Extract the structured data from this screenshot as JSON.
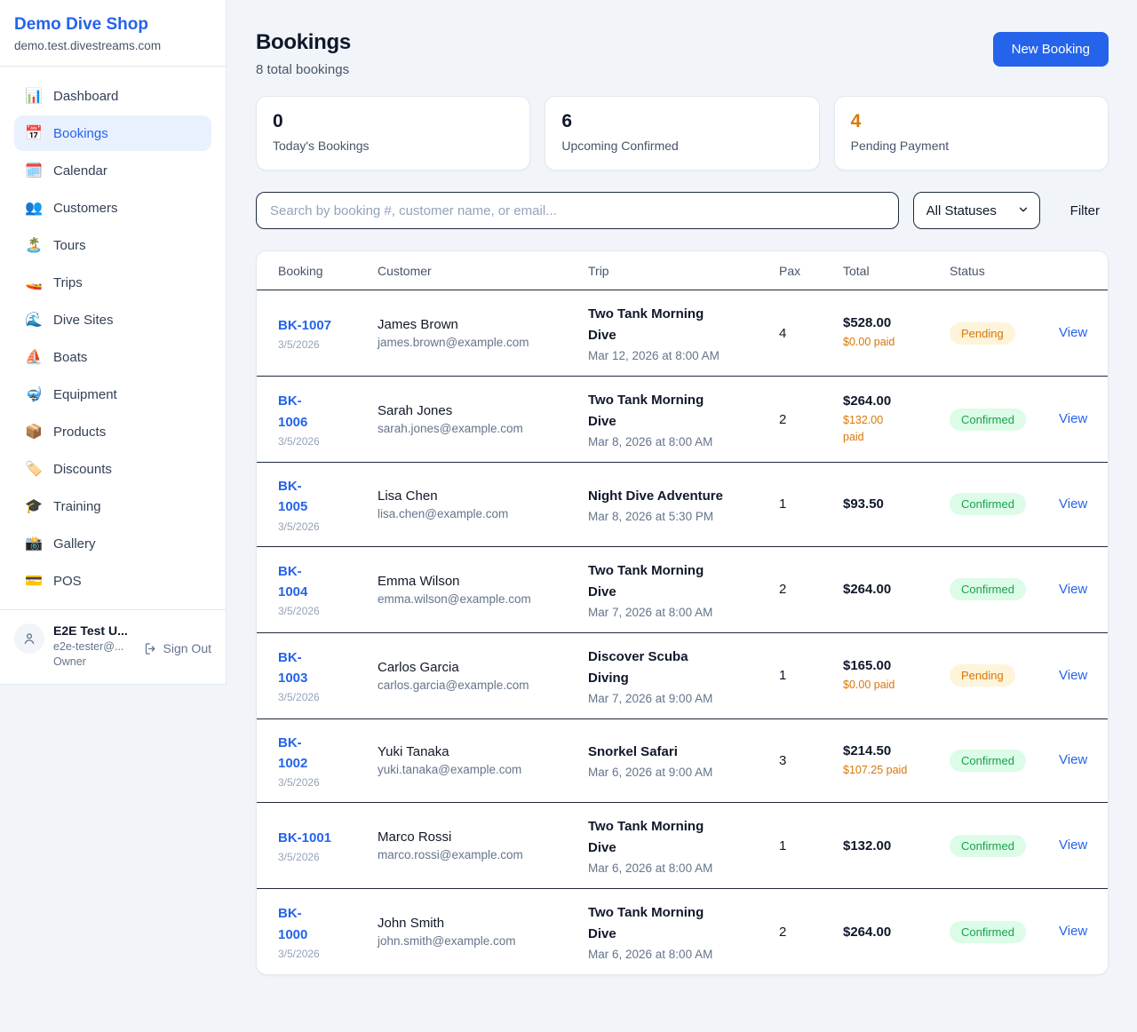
{
  "colors": {
    "accent": "#2563eb",
    "orange": "#d97706",
    "confirmed_text": "#16a34a",
    "confirmed_bg": "#dcfce7",
    "pending_text": "#d97706",
    "pending_bg": "#fdf4da"
  },
  "sidebar": {
    "brand": "Demo Dive Shop",
    "domain": "demo.test.divestreams.com",
    "items": [
      {
        "id": "dashboard",
        "icon": "📊",
        "icon_name": "bar-chart-icon",
        "label": "Dashboard",
        "active": false
      },
      {
        "id": "bookings",
        "icon": "📅",
        "icon_name": "calendar-icon",
        "label": "Bookings",
        "active": true
      },
      {
        "id": "calendar",
        "icon": "🗓️",
        "icon_name": "spiral-calendar-icon",
        "label": "Calendar",
        "active": false
      },
      {
        "id": "customers",
        "icon": "👥",
        "icon_name": "people-icon",
        "label": "Customers",
        "active": false
      },
      {
        "id": "tours",
        "icon": "🏝️",
        "icon_name": "island-icon",
        "label": "Tours",
        "active": false
      },
      {
        "id": "trips",
        "icon": "🚤",
        "icon_name": "speedboat-icon",
        "label": "Trips",
        "active": false
      },
      {
        "id": "dive-sites",
        "icon": "🌊",
        "icon_name": "wave-icon",
        "label": "Dive Sites",
        "active": false
      },
      {
        "id": "boats",
        "icon": "⛵",
        "icon_name": "sailboat-icon",
        "label": "Boats",
        "active": false
      },
      {
        "id": "equipment",
        "icon": "🤿",
        "icon_name": "diving-mask-icon",
        "label": "Equipment",
        "active": false
      },
      {
        "id": "products",
        "icon": "📦",
        "icon_name": "package-icon",
        "label": "Products",
        "active": false
      },
      {
        "id": "discounts",
        "icon": "🏷️",
        "icon_name": "label-tag-icon",
        "label": "Discounts",
        "active": false
      },
      {
        "id": "training",
        "icon": "🎓",
        "icon_name": "graduation-cap-icon",
        "label": "Training",
        "active": false
      },
      {
        "id": "gallery",
        "icon": "📸",
        "icon_name": "camera-icon",
        "label": "Gallery",
        "active": false
      },
      {
        "id": "pos",
        "icon": "💳",
        "icon_name": "credit-card-icon",
        "label": "POS",
        "active": false
      }
    ],
    "user": {
      "name": "E2E Test U...",
      "email": "e2e-tester@...",
      "role": "Owner",
      "sign_out_label": "Sign Out"
    }
  },
  "header": {
    "title": "Bookings",
    "subtitle": "8 total bookings",
    "new_booking_label": "New Booking"
  },
  "stats": [
    {
      "value": "0",
      "label": "Today's Bookings",
      "highlight": false
    },
    {
      "value": "6",
      "label": "Upcoming Confirmed",
      "highlight": false
    },
    {
      "value": "4",
      "label": "Pending Payment",
      "highlight": true
    }
  ],
  "filters": {
    "search_placeholder": "Search by booking #, customer name, or email...",
    "status_selected": "All Statuses",
    "filter_label": "Filter"
  },
  "table": {
    "columns": [
      "Booking",
      "Customer",
      "Trip",
      "Pax",
      "Total",
      "Status"
    ],
    "view_label": "View",
    "rows": [
      {
        "code": "BK-1007",
        "date": "3/5/2026",
        "name": "James Brown",
        "email": "james.brown@example.com",
        "trip": "Two Tank Morning\nDive",
        "when": "Mar 12, 2026 at 8:00 AM",
        "pax": "4",
        "total": "$528.00",
        "paid": "$0.00 paid",
        "status": "Pending"
      },
      {
        "code": "BK-\n1006",
        "date": "3/5/2026",
        "name": "Sarah Jones",
        "email": "sarah.jones@example.com",
        "trip": "Two Tank Morning\nDive",
        "when": "Mar 8, 2026 at 8:00 AM",
        "pax": "2",
        "total": "$264.00",
        "paid": "$132.00\npaid",
        "status": "Confirmed"
      },
      {
        "code": "BK-\n1005",
        "date": "3/5/2026",
        "name": "Lisa Chen",
        "email": "lisa.chen@example.com",
        "trip": "Night Dive Adventure",
        "when": "Mar 8, 2026 at 5:30 PM",
        "pax": "1",
        "total": "$93.50",
        "paid": null,
        "status": "Confirmed"
      },
      {
        "code": "BK-\n1004",
        "date": "3/5/2026",
        "name": "Emma Wilson",
        "email": "emma.wilson@example.com",
        "trip": "Two Tank Morning\nDive",
        "when": "Mar 7, 2026 at 8:00 AM",
        "pax": "2",
        "total": "$264.00",
        "paid": null,
        "status": "Confirmed"
      },
      {
        "code": "BK-\n1003",
        "date": "3/5/2026",
        "name": "Carlos Garcia",
        "email": "carlos.garcia@example.com",
        "trip": "Discover Scuba\nDiving",
        "when": "Mar 7, 2026 at 9:00 AM",
        "pax": "1",
        "total": "$165.00",
        "paid": "$0.00 paid",
        "status": "Pending"
      },
      {
        "code": "BK-\n1002",
        "date": "3/5/2026",
        "name": "Yuki Tanaka",
        "email": "yuki.tanaka@example.com",
        "trip": "Snorkel Safari",
        "when": "Mar 6, 2026 at 9:00 AM",
        "pax": "3",
        "total": "$214.50",
        "paid": "$107.25 paid",
        "status": "Confirmed"
      },
      {
        "code": "BK-1001",
        "date": "3/5/2026",
        "name": "Marco Rossi",
        "email": "marco.rossi@example.com",
        "trip": "Two Tank Morning\nDive",
        "when": "Mar 6, 2026 at 8:00 AM",
        "pax": "1",
        "total": "$132.00",
        "paid": null,
        "status": "Confirmed"
      },
      {
        "code": "BK-\n1000",
        "date": "3/5/2026",
        "name": "John Smith",
        "email": "john.smith@example.com",
        "trip": "Two Tank Morning\nDive",
        "when": "Mar 6, 2026 at 8:00 AM",
        "pax": "2",
        "total": "$264.00",
        "paid": null,
        "status": "Confirmed"
      }
    ]
  }
}
